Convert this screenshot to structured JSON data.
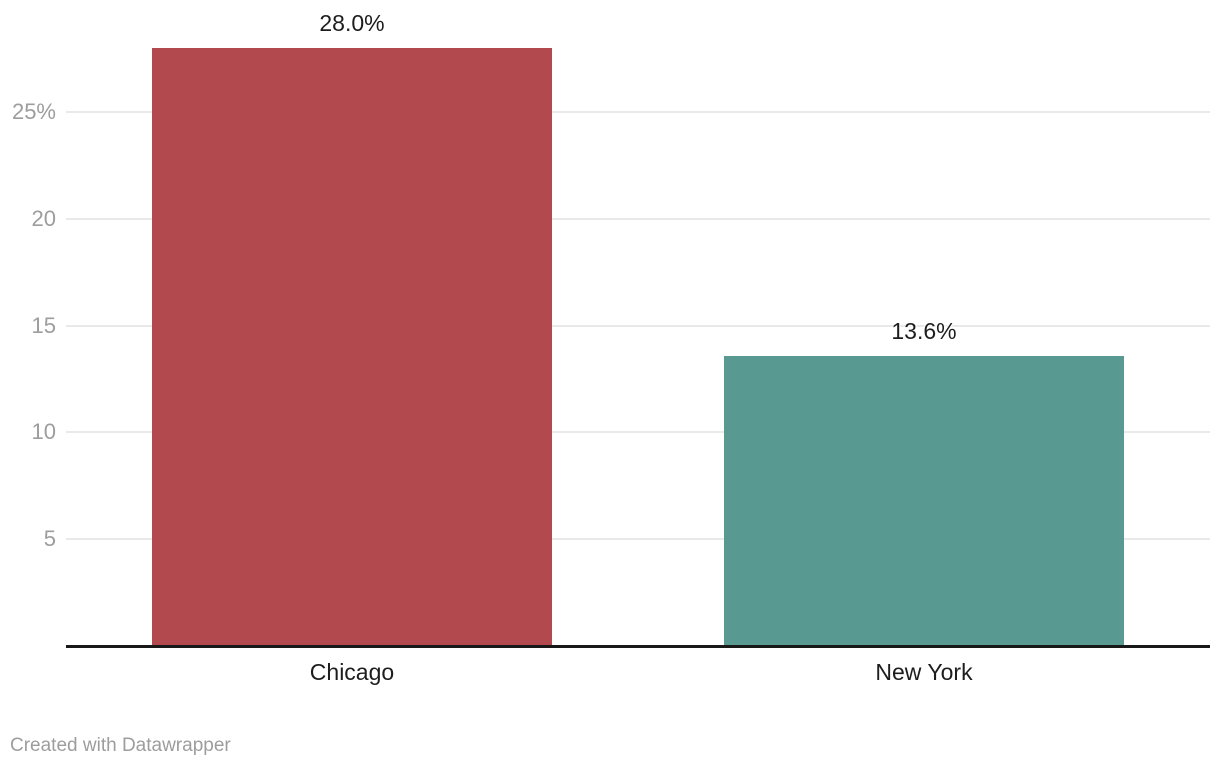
{
  "chart_data": {
    "type": "bar",
    "categories": [
      "Chicago",
      "New York"
    ],
    "values": [
      28.0,
      13.6
    ],
    "value_labels": [
      "28.0%",
      "13.6%"
    ],
    "bar_colors": [
      "#b1494f",
      "#589a92"
    ],
    "title": "",
    "xlabel": "",
    "ylabel": "",
    "ylim": [
      0,
      30
    ],
    "yticks": [
      {
        "value": 5,
        "label": "5"
      },
      {
        "value": 10,
        "label": "10"
      },
      {
        "value": 15,
        "label": "15"
      },
      {
        "value": 20,
        "label": "20"
      },
      {
        "value": 25,
        "label": "25%"
      }
    ],
    "grid": true,
    "legend": "none",
    "baseline_color": "#181818",
    "gridline_color": "#e9e9e9",
    "tick_label_color": "#9d9d9d",
    "label_color": "#1d1d1d"
  },
  "footer": {
    "credit": "Created with Datawrapper"
  }
}
